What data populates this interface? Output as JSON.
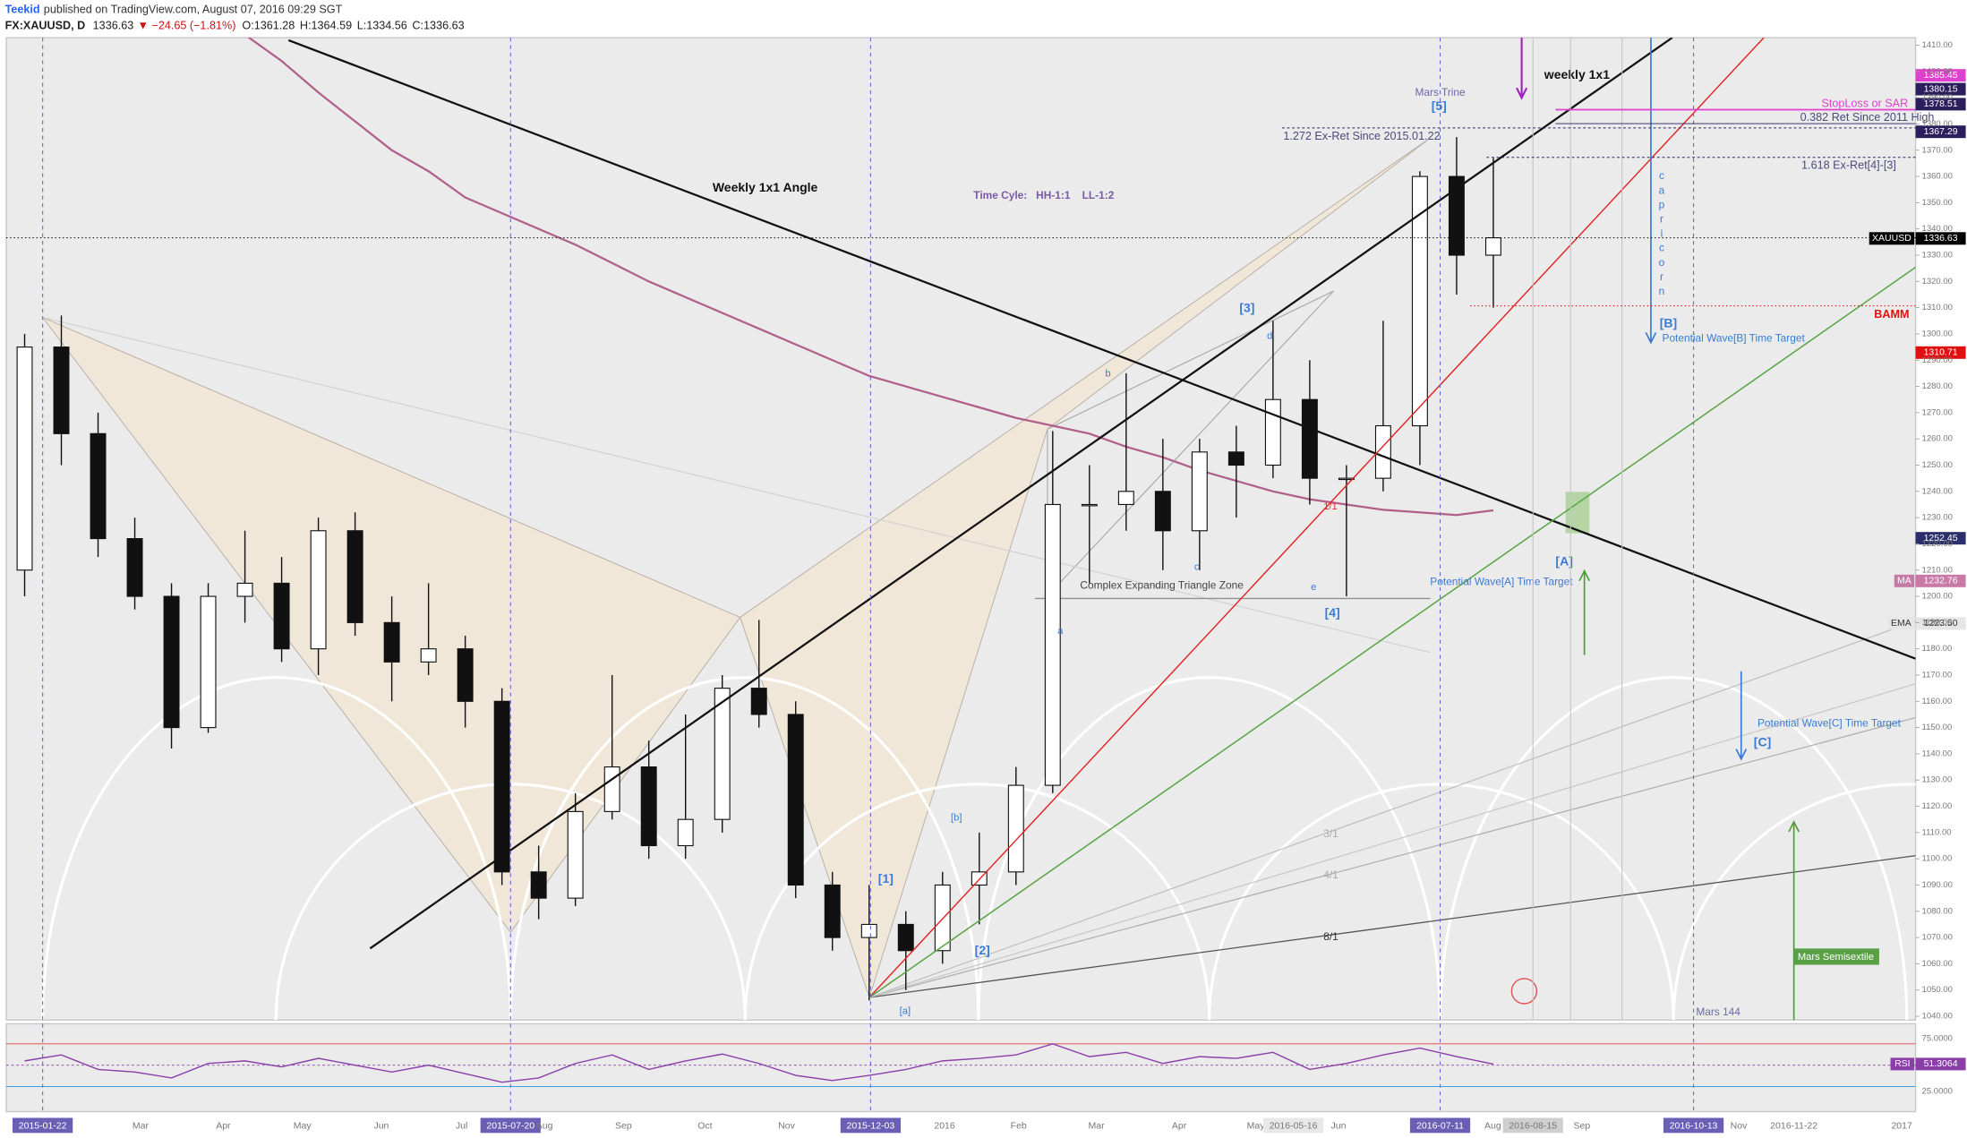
{
  "header": {
    "author": "Teekid",
    "published": "published on TradingView.com, August 07, 2016 09:29 SGT",
    "symbol": "FX:XAUUSD, D",
    "last": "1336.63",
    "change": "▼ −24.65 (−1.81%)",
    "open": "O:1361.28",
    "high": "H:1364.59",
    "low": "L:1334.56",
    "close": "C:1336.63"
  },
  "chart_data": {
    "type": "candlestick",
    "categories": [
      "2015-01-22",
      null,
      null,
      "Mar",
      null,
      "Apr",
      null,
      null,
      "May",
      null,
      "Jun",
      null,
      "Jul",
      "2015-07-20",
      "Aug",
      null,
      "Sep",
      null,
      null,
      "Oct",
      null,
      "Nov",
      null,
      "2015-12-03",
      null,
      "2016",
      null,
      "Feb",
      null,
      "Mar",
      null,
      "Apr",
      null,
      "May",
      null,
      "2016-05-16",
      "Jun",
      null,
      null,
      "2016-07-11",
      "Aug",
      "2016-08-15",
      "Sep",
      null,
      null,
      "2016-10-13",
      null,
      "Nov",
      "2016-11-22",
      null,
      null,
      "2017"
    ],
    "open": [
      1210,
      1295,
      1262,
      1222,
      1200,
      1150,
      1200,
      1205,
      1180,
      1225,
      1190,
      1175,
      1180,
      1160,
      1095,
      1085,
      1118,
      1135,
      1105,
      1115,
      1165,
      1155,
      1090,
      1070,
      1075,
      1065,
      1090,
      1095,
      1128,
      1235,
      1235,
      1240,
      1225,
      1255,
      1250,
      1275,
      1245,
      1245,
      1265,
      1360,
      1330,
      null,
      null,
      null,
      null,
      null,
      null,
      null,
      null,
      null,
      null,
      null
    ],
    "high": [
      1300,
      1307,
      1270,
      1230,
      1205,
      1205,
      1225,
      1215,
      1230,
      1232,
      1200,
      1205,
      1185,
      1165,
      1105,
      1125,
      1170,
      1145,
      1155,
      1170,
      1191,
      1160,
      1095,
      1090,
      1080,
      1095,
      1110,
      1135,
      1263,
      1250,
      1285,
      1260,
      1260,
      1265,
      1305,
      1290,
      1250,
      1305,
      1362,
      1375,
      1367,
      null,
      null,
      null,
      null,
      null,
      null,
      null,
      null,
      null,
      null,
      null
    ],
    "low": [
      1200,
      1250,
      1215,
      1195,
      1142,
      1148,
      1190,
      1175,
      1170,
      1185,
      1160,
      1170,
      1150,
      1090,
      1077,
      1082,
      1115,
      1100,
      1100,
      1110,
      1150,
      1085,
      1065,
      1046,
      1050,
      1060,
      1075,
      1090,
      1125,
      1205,
      1225,
      1210,
      1210,
      1230,
      1245,
      1235,
      1200,
      1240,
      1250,
      1315,
      1310,
      null,
      null,
      null,
      null,
      null,
      null,
      null,
      null,
      null,
      null,
      null
    ],
    "close": [
      1295,
      1262,
      1222,
      1200,
      1150,
      1200,
      1205,
      1180,
      1225,
      1190,
      1175,
      1180,
      1160,
      1095,
      1085,
      1118,
      1135,
      1105,
      1115,
      1165,
      1155,
      1090,
      1070,
      1075,
      1065,
      1090,
      1095,
      1128,
      1235,
      1235,
      1240,
      1225,
      1255,
      1250,
      1275,
      1245,
      1245,
      1265,
      1360,
      1330,
      1336.63,
      null,
      null,
      null,
      null,
      null,
      null,
      null,
      null,
      null,
      null,
      null
    ],
    "moving_average": {
      "color": "#b0608a",
      "values": [
        null,
        null,
        null,
        null,
        null,
        null,
        1414,
        1404,
        1392,
        1381,
        1370,
        1362,
        1352,
        1346,
        1340,
        1334,
        1327,
        1320,
        1314,
        1308,
        1302,
        1296,
        1290,
        1284,
        1280,
        1276,
        1272,
        1268,
        1265,
        1262,
        1257,
        1253,
        1248,
        1244,
        1240,
        1237,
        1235,
        1233,
        1232,
        1231,
        1232.76,
        null,
        null,
        null,
        null,
        null,
        null,
        null,
        null,
        null,
        null,
        null
      ]
    },
    "ylim": [
      1038.57,
      1412.87
    ],
    "yticks": [
      {
        "value": 1040,
        "label": "1040.00"
      },
      {
        "value": 1050,
        "label": "1050.00"
      },
      {
        "value": 1060,
        "label": "1060.00"
      },
      {
        "value": 1070,
        "label": "1070.00"
      },
      {
        "value": 1080,
        "label": "1080.00"
      },
      {
        "value": 1090,
        "label": "1090.00"
      },
      {
        "value": 1100,
        "label": "1100.00"
      },
      {
        "value": 1110,
        "label": "1110.00"
      },
      {
        "value": 1120,
        "label": "1120.00"
      },
      {
        "value": 1130,
        "label": "1130.00"
      },
      {
        "value": 1140,
        "label": "1140.00"
      },
      {
        "value": 1150,
        "label": "1150.00"
      },
      {
        "value": 1160,
        "label": "1160.00"
      },
      {
        "value": 1170,
        "label": "1170.00"
      },
      {
        "value": 1180,
        "label": "1180.00"
      },
      {
        "value": 1190,
        "label": "1190.00"
      },
      {
        "value": 1200,
        "label": "1200.00"
      },
      {
        "value": 1210,
        "label": "1210.00"
      },
      {
        "value": 1220,
        "label": "1220.00"
      },
      {
        "value": 1230,
        "label": "1230.00"
      },
      {
        "value": 1240,
        "label": "1240.00"
      },
      {
        "value": 1250,
        "label": "1250.00"
      },
      {
        "value": 1260,
        "label": "1260.00"
      },
      {
        "value": 1270,
        "label": "1270.00"
      },
      {
        "value": 1280,
        "label": "1280.00"
      },
      {
        "value": 1290,
        "label": "1290.00"
      },
      {
        "value": 1300,
        "label": "1300.00"
      },
      {
        "value": 1310,
        "label": "1310.00"
      },
      {
        "value": 1320,
        "label": "1320.00"
      },
      {
        "value": 1330,
        "label": "1330.00"
      },
      {
        "value": 1340,
        "label": "1340.00"
      },
      {
        "value": 1350,
        "label": "1350.00"
      },
      {
        "value": 1360,
        "label": "1360.00"
      },
      {
        "value": 1370,
        "label": "1370.00"
      },
      {
        "value": 1380,
        "label": "1380.00"
      },
      {
        "value": 1390,
        "label": "1390.00"
      },
      {
        "value": 1400,
        "label": "1400.00"
      },
      {
        "value": 1410,
        "label": "1410.00"
      }
    ],
    "price_labels": [
      {
        "value": 1385.45,
        "label": "1385.45",
        "color": "#e040d0",
        "text_color": "#ffffff"
      },
      {
        "value": 1380.15,
        "label": "1380.15",
        "color": "#2a1f5c",
        "text_color": "#ffffff"
      },
      {
        "value": 1378.51,
        "label": "1378.51",
        "color": "#2a1f5c",
        "text_color": "#ffffff"
      },
      {
        "value": 1367.29,
        "label": "1367.29",
        "color": "#2a1f5c",
        "text_color": "#ffffff"
      },
      {
        "name": "XAUUSD",
        "value": 1336.63,
        "label": "1336.63",
        "color": "#000000",
        "text_color": "#ffffff"
      },
      {
        "value": 1310.71,
        "label": "1310.71",
        "color": "#e01010",
        "text_color": "#ffffff"
      },
      {
        "value": 1252.45,
        "label": "1252.45",
        "color": "#2a2f6c",
        "text_color": "#ffffff"
      },
      {
        "name": "MA",
        "value": 1232.76,
        "label": "1232.76",
        "color": "#c87aa6",
        "text_color": "#ffffff"
      },
      {
        "name": "EMA",
        "value": 1223.5,
        "label": "1223.50",
        "color": "#e6e6e6",
        "text_color": "#333333"
      }
    ],
    "rsi": {
      "name": "RSI",
      "color": "#8a3fa8",
      "ylim": [
        -4.4,
        98.5
      ],
      "yticks": [
        {
          "value": 75,
          "label": "75.0000"
        },
        {
          "value": 25,
          "label": "25.0000"
        }
      ],
      "values": [
        55,
        62,
        45,
        42,
        35,
        52,
        55,
        48,
        58,
        50,
        42,
        50,
        40,
        30,
        35,
        52,
        62,
        45,
        55,
        63,
        52,
        38,
        32,
        38,
        45,
        55,
        58,
        62,
        75,
        60,
        65,
        52,
        60,
        58,
        65,
        45,
        52,
        62,
        70,
        60,
        51.3064,
        null,
        null,
        null,
        null,
        null,
        null,
        null,
        null,
        null,
        null,
        null
      ]
    },
    "annotations": [
      "Weekly 1x1 Angle",
      "weekly 1x1",
      "Mars Trine",
      "[5]",
      "1.272 Ex-Ret Since 2015.01.22",
      "StopLoss or SAR",
      "0.382 Ret Since 2011 High",
      "1.618 Ex-Ret[4]-[3]",
      "Time Cyle:   HH-1:1    LL-1:2",
      "[3]",
      "d",
      "b",
      "c",
      "a",
      "e",
      "[4]",
      "Complex Expanding Triangle Zone",
      "1/1",
      "[A]",
      "Potential Wave[A] Time Target",
      "[B]",
      "Potential Wave[B] Time Target",
      "BAMM",
      "capricorn",
      "[1]",
      "[2]",
      "[a]",
      "[b]",
      "3/1",
      "4/1",
      "8/1",
      "[C]",
      "Potential Wave[C] Time Target",
      "Mars Semisextile",
      "Mars 144"
    ]
  }
}
